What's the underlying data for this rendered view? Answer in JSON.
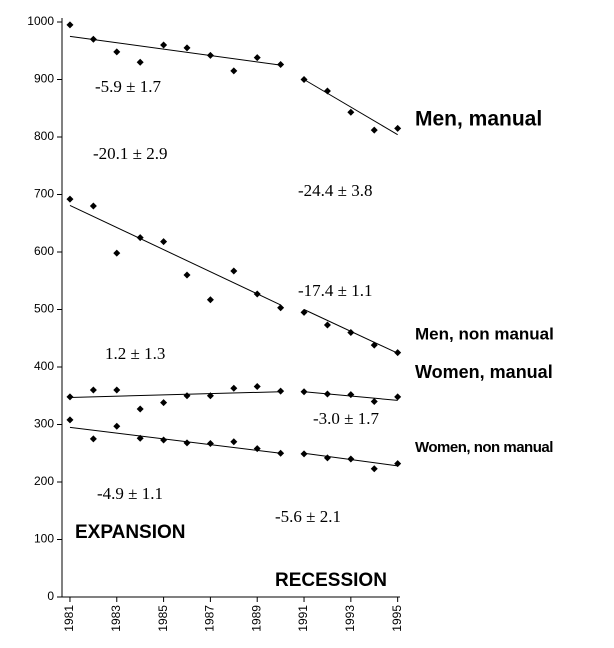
{
  "chart_data": {
    "type": "scatter",
    "x": [
      1981,
      1982,
      1983,
      1984,
      1985,
      1986,
      1987,
      1988,
      1989,
      1990,
      1991,
      1992,
      1993,
      1994,
      1995
    ],
    "series": [
      {
        "name": "Men, manual",
        "color": "#000000",
        "values": [
          995,
          970,
          948,
          930,
          960,
          955,
          942,
          915,
          938,
          926,
          900,
          880,
          843,
          812,
          815
        ],
        "trend": [
          {
            "x": [
              1981,
              1990
            ],
            "y": [
              975,
              925
            ]
          },
          {
            "x": [
              1991,
              1995
            ],
            "y": [
              900,
              804
            ]
          }
        ]
      },
      {
        "name": "Men, non manual",
        "color": "#000000",
        "values": [
          692,
          680,
          598,
          625,
          618,
          560,
          517,
          567,
          527,
          503,
          495,
          473,
          460,
          438,
          425
        ],
        "trend": [
          {
            "x": [
              1981,
              1990
            ],
            "y": [
              681,
              508
            ]
          },
          {
            "x": [
              1991,
              1995
            ],
            "y": [
              500,
              424
            ]
          }
        ]
      },
      {
        "name": "Women, manual",
        "color": "#000000",
        "values": [
          348,
          360,
          360,
          327,
          338,
          350,
          350,
          363,
          366,
          358,
          357,
          353,
          352,
          340,
          348
        ],
        "trend": [
          {
            "x": [
              1981,
              1990
            ],
            "y": [
              347,
              357
            ]
          },
          {
            "x": [
              1991,
              1995
            ],
            "y": [
              357,
              342
            ]
          }
        ]
      },
      {
        "name": "Women, non manual",
        "color": "#000000",
        "values": [
          308,
          275,
          297,
          276,
          273,
          268,
          267,
          270,
          258,
          250,
          249,
          242,
          240,
          223,
          232
        ],
        "trend": [
          {
            "x": [
              1981,
              1990
            ],
            "y": [
              295,
              250
            ]
          },
          {
            "x": [
              1991,
              1995
            ],
            "y": [
              250,
              228
            ]
          }
        ]
      }
    ],
    "annotations": [
      "-5.9 ± 1.7",
      "-24.4 ± 3.8",
      "-20.1 ± 2.9",
      "-17.4 ± 1.1",
      "1.2 ± 1.3",
      "-3.0 ± 1.7",
      "-4.9 ± 1.1",
      "-5.6 ± 2.1",
      "EXPANSION",
      "RECESSION"
    ],
    "xlim": [
      1980.66,
      1995.1
    ],
    "xticks": [
      1981,
      1983,
      1985,
      1987,
      1989,
      1991,
      1993,
      1995
    ],
    "ylim": [
      0,
      1000
    ],
    "yticks": [
      0,
      100,
      200,
      300,
      400,
      500,
      600,
      700,
      800,
      900,
      1000
    ]
  }
}
